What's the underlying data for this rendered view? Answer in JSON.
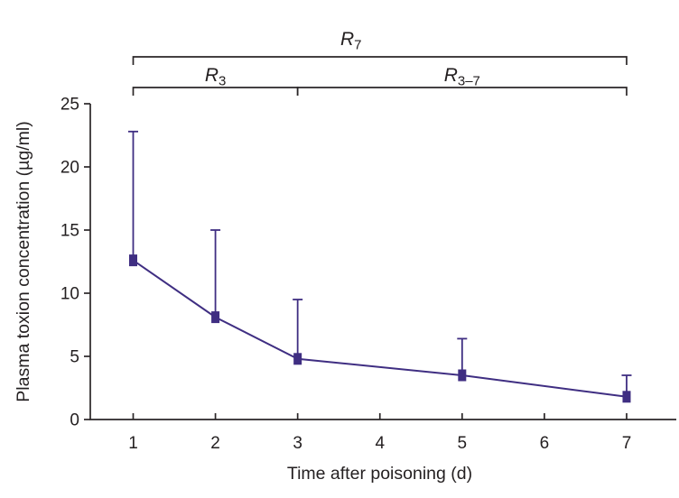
{
  "figure": {
    "background": "#ffffff"
  },
  "chart_data": {
    "type": "line",
    "title": "",
    "xlabel": "Time after poisoning (d)",
    "ylabel": "Plasma toxion concentration (µg/ml)",
    "x": [
      1,
      2,
      3,
      5,
      7
    ],
    "series": [
      {
        "name": "plasma-toxion-concentration",
        "values": [
          12.6,
          8.1,
          4.8,
          3.5,
          1.8
        ],
        "error_plus": [
          10.2,
          6.9,
          4.7,
          2.9,
          1.7
        ],
        "marker": "square",
        "color": "#3f2e82"
      }
    ],
    "xticks": [
      1,
      2,
      3,
      4,
      5,
      6,
      7
    ],
    "yticks": [
      0,
      5,
      10,
      15,
      20,
      25
    ],
    "xlim": [
      0.48,
      7.6
    ],
    "ylim": [
      0,
      25
    ],
    "grid": false,
    "legend": false,
    "axis_color": "#2a2627",
    "text_color": "#231f20",
    "annotations": [
      {
        "id": "R7",
        "base": "R",
        "sub": "7",
        "x_start": 1,
        "x_end": 7,
        "row": "top"
      },
      {
        "id": "R3",
        "base": "R",
        "sub": "3",
        "x_start": 1,
        "x_end": 3,
        "row": "bottom"
      },
      {
        "id": "R3-7",
        "base": "R",
        "sub": "3–7",
        "x_start": 3,
        "x_end": 7,
        "row": "bottom"
      }
    ]
  }
}
